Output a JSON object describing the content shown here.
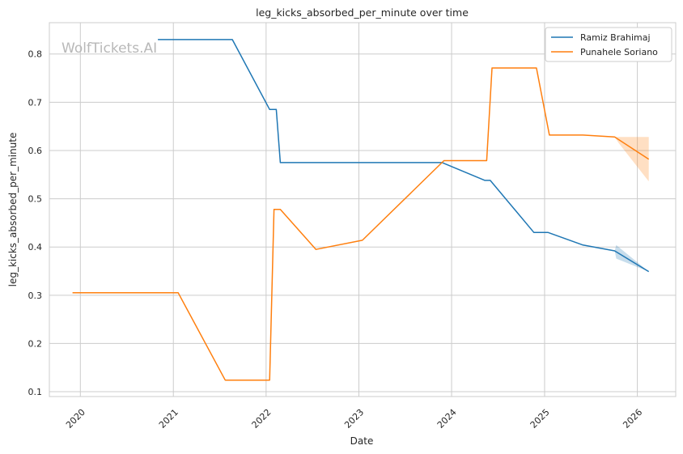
{
  "chart_data": {
    "type": "line",
    "title": "leg_kicks_absorbed_per_minute over time",
    "xlabel": "Date",
    "ylabel": "leg_kicks_absorbed_per_minute",
    "watermark": "WolfTickets.AI",
    "xlim": [
      "2019-09-01",
      "2026-06-01"
    ],
    "ylim": [
      0.09,
      0.865
    ],
    "x_ticks": [
      "2020-01-01",
      "2021-01-01",
      "2022-01-01",
      "2023-01-01",
      "2024-01-01",
      "2025-01-01",
      "2026-01-01"
    ],
    "x_tick_labels": [
      "2020",
      "2021",
      "2022",
      "2023",
      "2024",
      "2025",
      "2026"
    ],
    "y_ticks": [
      0.1,
      0.2,
      0.3,
      0.4,
      0.5,
      0.6,
      0.7,
      0.8
    ],
    "y_tick_labels": [
      "0.1",
      "0.2",
      "0.3",
      "0.4",
      "0.5",
      "0.6",
      "0.7",
      "0.8"
    ],
    "grid": true,
    "legend_position": "top-right",
    "series": [
      {
        "name": "Ramiz Brahimaj",
        "color": "#1f77b4",
        "points": [
          [
            "2020-11-01",
            0.83
          ],
          [
            "2021-08-21",
            0.83
          ],
          [
            "2022-01-15",
            0.685
          ],
          [
            "2022-02-10",
            0.685
          ],
          [
            "2022-02-26",
            0.575
          ],
          [
            "2023-11-25",
            0.575
          ],
          [
            "2024-05-11",
            0.538
          ],
          [
            "2024-06-01",
            0.538
          ],
          [
            "2024-11-20",
            0.43
          ],
          [
            "2025-01-15",
            0.43
          ],
          [
            "2025-06-01",
            0.404
          ],
          [
            "2025-10-04",
            0.392
          ],
          [
            "2026-02-15",
            0.349
          ]
        ],
        "band": [
          [
            "2025-10-04",
            0.392,
            0.392
          ],
          [
            "2025-10-10",
            0.376,
            0.404
          ],
          [
            "2026-02-15",
            0.349,
            0.349
          ]
        ]
      },
      {
        "name": "Punahele Soriano",
        "color": "#ff7f0e",
        "points": [
          [
            "2019-12-01",
            0.305
          ],
          [
            "2021-01-20",
            0.305
          ],
          [
            "2021-07-24",
            0.124
          ],
          [
            "2022-01-15",
            0.124
          ],
          [
            "2022-02-01",
            0.478
          ],
          [
            "2022-02-26",
            0.478
          ],
          [
            "2022-07-16",
            0.395
          ],
          [
            "2023-01-15",
            0.414
          ],
          [
            "2023-12-02",
            0.579
          ],
          [
            "2024-05-18",
            0.579
          ],
          [
            "2024-06-08",
            0.771
          ],
          [
            "2024-11-30",
            0.771
          ],
          [
            "2025-01-20",
            0.632
          ],
          [
            "2025-06-01",
            0.632
          ],
          [
            "2025-10-04",
            0.628
          ],
          [
            "2026-02-15",
            0.582
          ]
        ],
        "band": [
          [
            "2025-10-04",
            0.628,
            0.628
          ],
          [
            "2025-10-20",
            0.615,
            0.628
          ],
          [
            "2026-02-15",
            0.536,
            0.628
          ]
        ]
      }
    ]
  }
}
